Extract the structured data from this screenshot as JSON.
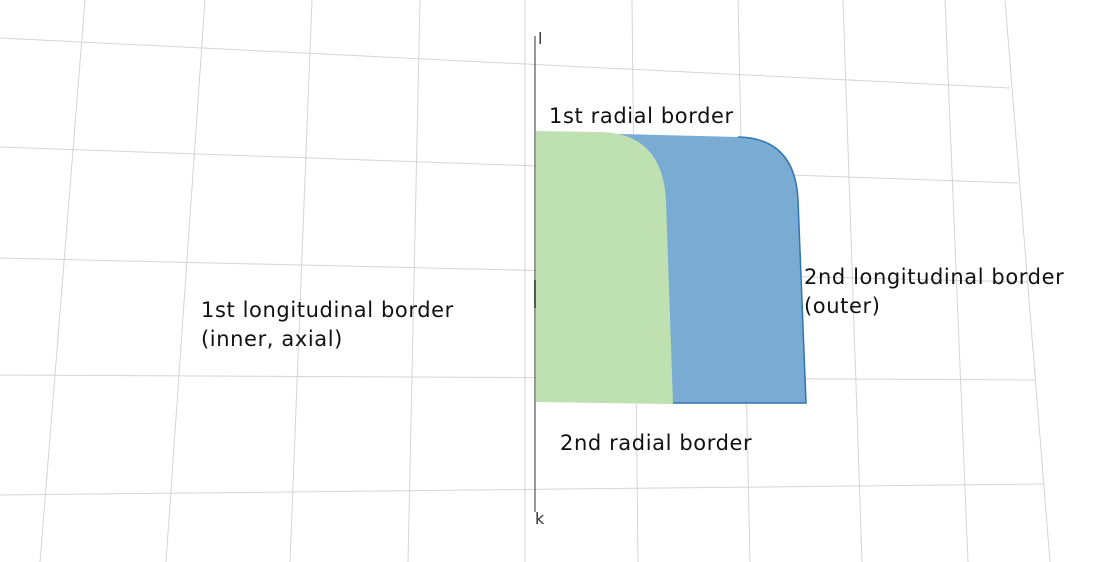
{
  "colors": {
    "background": "#ffffff",
    "grid": "#d4d4d4",
    "axis": "#555555",
    "inner_region": "#bfe0b0",
    "outer_region": "#7aabd2",
    "outer_edge": "#2f74b5",
    "text": "#111111"
  },
  "axes": {
    "vertical_top": "l",
    "vertical_bottom": "k"
  },
  "labels": {
    "first_radial": "1st radial border",
    "second_radial": "2nd radial border",
    "first_longitudinal": [
      "1st longitudinal border",
      "(inner, axial)"
    ],
    "second_longitudinal": [
      "2nd longitudinal border",
      "(outer)"
    ]
  }
}
